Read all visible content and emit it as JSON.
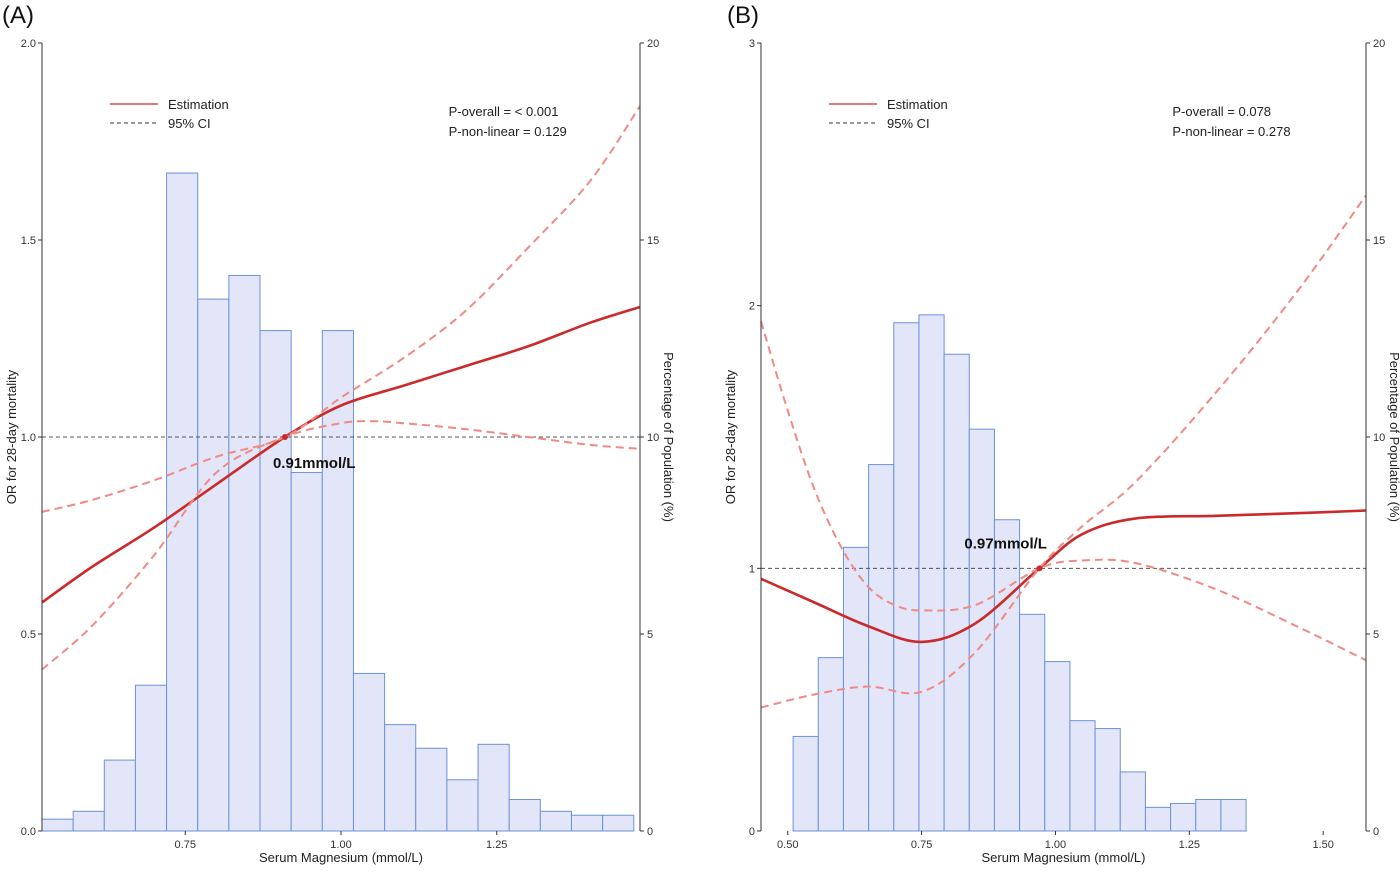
{
  "chart_data": [
    {
      "type": "bar",
      "panel_label": "(A)",
      "xlabel": "Serum Magnesium (mmol/L)",
      "ylabel": "OR for 28-day mortality",
      "y2label": "Percentage of Population (%)",
      "xlim": [
        0.52,
        1.48
      ],
      "ylim": [
        0,
        2.0
      ],
      "y2lim": [
        0,
        20
      ],
      "x_ticks": [
        0.75,
        1.0,
        1.25
      ],
      "x_tick_labels": [
        "0.75",
        "1.00",
        "1.25"
      ],
      "y_ticks": [
        0,
        0.5,
        1.0,
        1.5,
        2.0
      ],
      "y_tick_labels": [
        "0.0",
        "0.5",
        "1.0",
        "1.5",
        "2.0"
      ],
      "y2_ticks": [
        0,
        5,
        10,
        15,
        20
      ],
      "y2_tick_labels": [
        "0",
        "5",
        "10",
        "15",
        "20"
      ],
      "reference_line": 1.0,
      "histogram": {
        "bin_width": 0.05,
        "bin_starts": [
          0.52,
          0.57,
          0.62,
          0.67,
          0.72,
          0.77,
          0.82,
          0.87,
          0.92,
          0.97,
          1.02,
          1.07,
          1.12,
          1.17,
          1.22,
          1.27,
          1.32,
          1.37,
          1.42
        ],
        "percent": [
          0.3,
          0.5,
          1.8,
          3.7,
          16.7,
          13.5,
          14.1,
          12.7,
          9.1,
          12.7,
          4.0,
          2.7,
          2.1,
          1.3,
          2.2,
          0.8,
          0.5,
          0.4,
          0.4
        ]
      },
      "series": [
        {
          "name": "Estimation",
          "style": "solid",
          "x": [
            0.52,
            0.6,
            0.7,
            0.8,
            0.91,
            1.0,
            1.1,
            1.2,
            1.3,
            1.4,
            1.48
          ],
          "y": [
            0.58,
            0.67,
            0.77,
            0.88,
            1.0,
            1.08,
            1.13,
            1.18,
            1.23,
            1.29,
            1.33
          ]
        },
        {
          "name": "95% CI",
          "style": "dashed",
          "x": [
            0.52,
            0.6,
            0.7,
            0.8,
            0.91,
            1.0,
            1.05,
            1.1,
            1.2,
            1.3,
            1.4,
            1.48
          ],
          "y": [
            0.41,
            0.52,
            0.7,
            0.91,
            1.0,
            1.035,
            1.04,
            1.035,
            1.02,
            1.0,
            0.98,
            0.97
          ]
        },
        {
          "name": "",
          "style": "dashed",
          "x": [
            0.52,
            0.6,
            0.7,
            0.8,
            0.91,
            1.0,
            1.1,
            1.2,
            1.3,
            1.4,
            1.48
          ],
          "y": [
            0.81,
            0.84,
            0.89,
            0.95,
            1.0,
            1.1,
            1.2,
            1.32,
            1.48,
            1.65,
            1.84
          ]
        }
      ],
      "cutoff": {
        "x": 0.91,
        "y": 1.0,
        "label": "0.91mmol/L"
      },
      "legend": {
        "placement": "top-left",
        "items": [
          {
            "label": "Estimation",
            "style": "solid"
          },
          {
            "label": "95% CI",
            "style": "dashed"
          }
        ]
      },
      "annotations": [
        "P-overall = < 0.001",
        "P-non-linear = 0.129"
      ],
      "colors": {
        "estimate": "#cc2a2a",
        "ci": "#f08a82",
        "bar_fill": "#e3e5f8",
        "bar_stroke": "#6b92d8"
      }
    },
    {
      "type": "bar",
      "panel_label": "(B)",
      "xlabel": "Serum Magnesium (mmol/L)",
      "ylabel": "OR for 28-day mortality",
      "y2label": "Percentage of Population (%)",
      "xlim": [
        0.45,
        1.58
      ],
      "ylim": [
        0,
        3
      ],
      "y2lim": [
        0,
        20
      ],
      "x_ticks": [
        0.5,
        0.75,
        1.0,
        1.25,
        1.5
      ],
      "x_tick_labels": [
        "0.50",
        "0.75",
        "1.00",
        "1.25",
        "1.50"
      ],
      "y_ticks": [
        0,
        1,
        2,
        3
      ],
      "y_tick_labels": [
        "0",
        "1",
        "2",
        "3"
      ],
      "y2_ticks": [
        0,
        5,
        10,
        15,
        20
      ],
      "y2_tick_labels": [
        "0",
        "5",
        "10",
        "15",
        "20"
      ],
      "reference_line": 1,
      "histogram": {
        "bin_width": 0.047,
        "bin_starts": [
          0.51,
          0.557,
          0.604,
          0.651,
          0.698,
          0.745,
          0.792,
          0.839,
          0.886,
          0.933,
          0.98,
          1.027,
          1.074,
          1.121,
          1.168,
          1.215,
          1.262,
          1.309,
          1.356,
          1.403,
          1.45,
          1.497,
          1.544
        ],
        "percent": [
          2.4,
          4.4,
          7.2,
          9.3,
          12.9,
          13.1,
          12.1,
          10.2,
          7.9,
          5.5,
          4.3,
          2.8,
          2.6,
          1.5,
          0.6,
          0.7,
          0.8,
          0.8,
          0,
          0,
          0,
          0,
          0
        ]
      },
      "series": [
        {
          "name": "Estimation",
          "style": "solid",
          "x": [
            0.45,
            0.55,
            0.65,
            0.75,
            0.85,
            0.97,
            1.05,
            1.15,
            1.3,
            1.45,
            1.58
          ],
          "y": [
            0.96,
            0.87,
            0.78,
            0.72,
            0.79,
            1.0,
            1.13,
            1.19,
            1.2,
            1.21,
            1.22
          ]
        },
        {
          "name": "95% CI",
          "style": "dashed",
          "x": [
            0.45,
            0.5,
            0.55,
            0.6,
            0.65,
            0.7,
            0.75,
            0.85,
            0.97,
            1.05,
            1.15,
            1.3,
            1.45,
            1.58
          ],
          "y": [
            1.94,
            1.6,
            1.3,
            1.08,
            0.93,
            0.86,
            0.84,
            0.86,
            1.0,
            1.03,
            1.02,
            0.92,
            0.78,
            0.65
          ]
        },
        {
          "name": "",
          "style": "dashed",
          "x": [
            0.45,
            0.55,
            0.65,
            0.75,
            0.85,
            0.97,
            1.05,
            1.15,
            1.3,
            1.45,
            1.58
          ],
          "y": [
            0.47,
            0.52,
            0.55,
            0.53,
            0.68,
            1.0,
            1.16,
            1.33,
            1.67,
            2.05,
            2.42
          ]
        }
      ],
      "cutoff": {
        "x": 0.97,
        "y": 1.0,
        "label": "0.97mmol/L"
      },
      "legend": {
        "placement": "top-left",
        "items": [
          {
            "label": "Estimation",
            "style": "solid"
          },
          {
            "label": "95% CI",
            "style": "dashed"
          }
        ]
      },
      "annotations": [
        "P-overall = 0.078",
        "P-non-linear = 0.278"
      ],
      "colors": {
        "estimate": "#cc2a2a",
        "ci": "#f08a82",
        "bar_fill": "#e3e5f8",
        "bar_stroke": "#6b92d8"
      }
    }
  ]
}
